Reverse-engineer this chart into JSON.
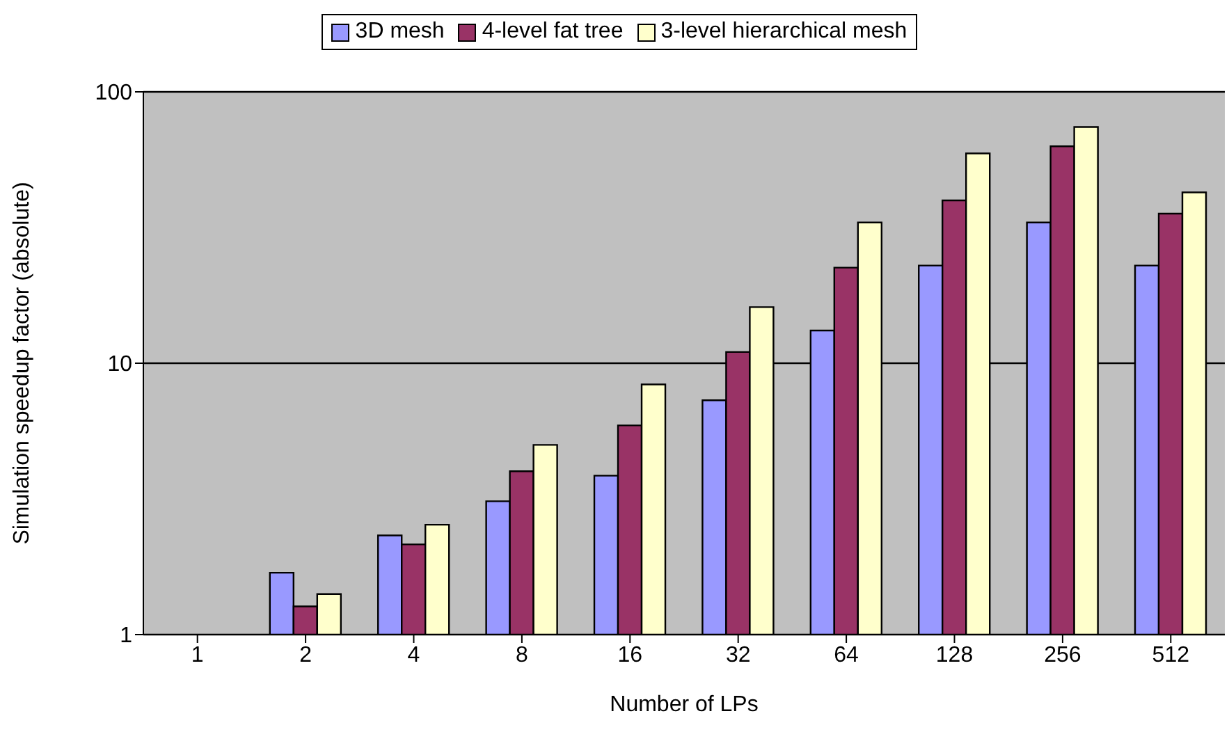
{
  "chart_data": {
    "type": "bar",
    "xlabel": "Number of LPs",
    "ylabel": "Simulation speedup factor (absolute)",
    "categories": [
      "1",
      "2",
      "4",
      "8",
      "16",
      "32",
      "64",
      "128",
      "256",
      "512"
    ],
    "series": [
      {
        "name": "3D mesh",
        "color": "#9999ff",
        "values": [
          null,
          1.69,
          2.32,
          3.1,
          3.85,
          7.3,
          13.2,
          22.9,
          33.0,
          22.9
        ]
      },
      {
        "name": "4-level fat tree",
        "color": "#993366",
        "values": [
          null,
          1.27,
          2.15,
          4.0,
          5.9,
          11.0,
          22.5,
          39.8,
          63.0,
          35.6
        ]
      },
      {
        "name": "3-level hierarchical mesh",
        "color": "#ffffcc",
        "values": [
          null,
          1.41,
          2.54,
          5.0,
          8.35,
          16.1,
          33.0,
          59.3,
          74.2,
          42.6
        ]
      }
    ],
    "log": "y",
    "ylim": [
      1,
      100
    ],
    "yticks": [
      1,
      10,
      100
    ],
    "grid": "y",
    "legend": "top"
  }
}
